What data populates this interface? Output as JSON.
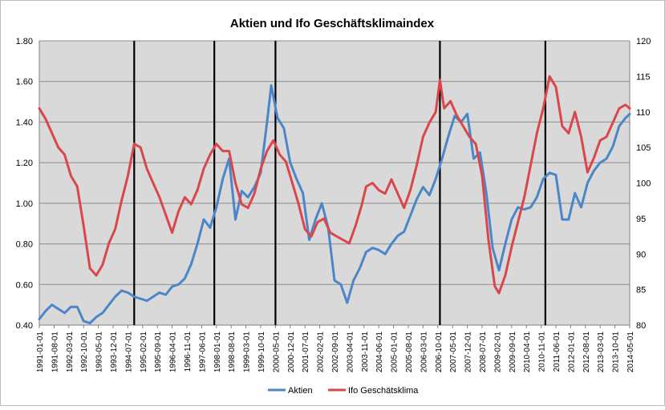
{
  "chart_data": {
    "type": "line",
    "title": "Aktien und Ifo Geschäftsklimaindex",
    "xlabel": "",
    "ylabel": "",
    "y_left": {
      "min": 0.4,
      "max": 1.8,
      "step": 0.2,
      "ticks": [
        "0.40",
        "0.60",
        "0.80",
        "1.00",
        "1.20",
        "1.40",
        "1.60",
        "1.80"
      ]
    },
    "y_right": {
      "min": 80,
      "max": 120,
      "step": 5,
      "ticks": [
        "80",
        "85",
        "90",
        "95",
        "100",
        "105",
        "110",
        "115",
        "120"
      ]
    },
    "x_tick_labels": [
      "1991-01-01",
      "1991-08-01",
      "1992-03-01",
      "1992-10-01",
      "1993-05-01",
      "1993-12-01",
      "1994-07-01",
      "1995-02-01",
      "1995-09-01",
      "1996-04-01",
      "1996-11-01",
      "1997-06-01",
      "1998-01-01",
      "1998-08-01",
      "1999-03-01",
      "1999-10-01",
      "2000-05-01",
      "2000-12-01",
      "2001-07-01",
      "2002-02-01",
      "2002-09-01",
      "2003-04-01",
      "2003-11-01",
      "2004-06-01",
      "2005-01-01",
      "2005-08-01",
      "2006-03-01",
      "2006-10-01",
      "2007-05-01",
      "2007-12-01",
      "2008-07-01",
      "2009-02-01",
      "2009-09-01",
      "2010-04-01",
      "2010-11-01",
      "2011-06-01",
      "2012-01-01",
      "2012-08-01",
      "2013-03-01",
      "2013-10-01",
      "2014-05-01"
    ],
    "recession_lines": [
      "1994-10-01",
      "1997-12-01",
      "2000-05-01",
      "2006-11-01",
      "2011-01-01"
    ],
    "grid": true,
    "legend_position": "bottom",
    "series": [
      {
        "name": "Aktien",
        "axis": "left",
        "color": "#4a86c8",
        "points": [
          [
            "1991-01-01",
            0.43
          ],
          [
            "1991-04-01",
            0.47
          ],
          [
            "1991-07-01",
            0.5
          ],
          [
            "1991-10-01",
            0.48
          ],
          [
            "1992-01-01",
            0.46
          ],
          [
            "1992-04-01",
            0.49
          ],
          [
            "1992-07-01",
            0.49
          ],
          [
            "1992-10-01",
            0.42
          ],
          [
            "1993-01-01",
            0.41
          ],
          [
            "1993-04-01",
            0.44
          ],
          [
            "1993-07-01",
            0.46
          ],
          [
            "1993-10-01",
            0.5
          ],
          [
            "1994-01-01",
            0.54
          ],
          [
            "1994-04-01",
            0.57
          ],
          [
            "1994-07-01",
            0.56
          ],
          [
            "1994-10-01",
            0.54
          ],
          [
            "1995-01-01",
            0.53
          ],
          [
            "1995-04-01",
            0.52
          ],
          [
            "1995-07-01",
            0.54
          ],
          [
            "1995-10-01",
            0.56
          ],
          [
            "1996-01-01",
            0.55
          ],
          [
            "1996-04-01",
            0.59
          ],
          [
            "1996-07-01",
            0.6
          ],
          [
            "1996-10-01",
            0.63
          ],
          [
            "1997-01-01",
            0.7
          ],
          [
            "1997-04-01",
            0.8
          ],
          [
            "1997-07-01",
            0.92
          ],
          [
            "1997-10-01",
            0.88
          ],
          [
            "1998-01-01",
            0.98
          ],
          [
            "1998-04-01",
            1.12
          ],
          [
            "1998-07-01",
            1.22
          ],
          [
            "1998-10-01",
            0.92
          ],
          [
            "1999-01-01",
            1.06
          ],
          [
            "1999-04-01",
            1.03
          ],
          [
            "1999-07-01",
            1.08
          ],
          [
            "1999-10-01",
            1.15
          ],
          [
            "2000-01-01",
            1.4
          ],
          [
            "2000-03-01",
            1.58
          ],
          [
            "2000-06-01",
            1.42
          ],
          [
            "2000-09-01",
            1.37
          ],
          [
            "2000-12-01",
            1.2
          ],
          [
            "2001-03-01",
            1.12
          ],
          [
            "2001-06-01",
            1.05
          ],
          [
            "2001-09-01",
            0.82
          ],
          [
            "2001-12-01",
            0.92
          ],
          [
            "2002-03-01",
            1.0
          ],
          [
            "2002-06-01",
            0.88
          ],
          [
            "2002-09-01",
            0.62
          ],
          [
            "2002-12-01",
            0.6
          ],
          [
            "2003-03-01",
            0.51
          ],
          [
            "2003-06-01",
            0.62
          ],
          [
            "2003-09-01",
            0.68
          ],
          [
            "2003-12-01",
            0.76
          ],
          [
            "2004-03-01",
            0.78
          ],
          [
            "2004-06-01",
            0.77
          ],
          [
            "2004-09-01",
            0.75
          ],
          [
            "2004-12-01",
            0.8
          ],
          [
            "2005-03-01",
            0.84
          ],
          [
            "2005-06-01",
            0.86
          ],
          [
            "2005-09-01",
            0.94
          ],
          [
            "2005-12-01",
            1.02
          ],
          [
            "2006-03-01",
            1.08
          ],
          [
            "2006-06-01",
            1.04
          ],
          [
            "2006-09-01",
            1.12
          ],
          [
            "2006-12-01",
            1.22
          ],
          [
            "2007-03-01",
            1.33
          ],
          [
            "2007-06-01",
            1.43
          ],
          [
            "2007-09-01",
            1.4
          ],
          [
            "2007-12-01",
            1.44
          ],
          [
            "2008-03-01",
            1.22
          ],
          [
            "2008-06-01",
            1.25
          ],
          [
            "2008-09-01",
            1.05
          ],
          [
            "2008-12-01",
            0.78
          ],
          [
            "2009-03-01",
            0.67
          ],
          [
            "2009-06-01",
            0.8
          ],
          [
            "2009-09-01",
            0.92
          ],
          [
            "2009-12-01",
            0.98
          ],
          [
            "2010-03-01",
            0.97
          ],
          [
            "2010-06-01",
            0.98
          ],
          [
            "2010-09-01",
            1.03
          ],
          [
            "2010-12-01",
            1.12
          ],
          [
            "2011-03-01",
            1.15
          ],
          [
            "2011-06-01",
            1.14
          ],
          [
            "2011-09-01",
            0.92
          ],
          [
            "2011-12-01",
            0.92
          ],
          [
            "2012-03-01",
            1.05
          ],
          [
            "2012-06-01",
            0.98
          ],
          [
            "2012-09-01",
            1.1
          ],
          [
            "2012-12-01",
            1.16
          ],
          [
            "2013-03-01",
            1.2
          ],
          [
            "2013-06-01",
            1.22
          ],
          [
            "2013-09-01",
            1.28
          ],
          [
            "2013-12-01",
            1.38
          ],
          [
            "2014-03-01",
            1.42
          ],
          [
            "2014-05-01",
            1.44
          ]
        ]
      },
      {
        "name": "Ifo Geschätsklima",
        "axis": "right",
        "color": "#d9474b",
        "points": [
          [
            "1991-01-01",
            110.5
          ],
          [
            "1991-04-01",
            109.0
          ],
          [
            "1991-07-01",
            107.0
          ],
          [
            "1991-10-01",
            105.0
          ],
          [
            "1992-01-01",
            104.0
          ],
          [
            "1992-04-01",
            101.0
          ],
          [
            "1992-07-01",
            99.5
          ],
          [
            "1992-10-01",
            94.0
          ],
          [
            "1993-01-01",
            88.0
          ],
          [
            "1993-04-01",
            87.0
          ],
          [
            "1993-07-01",
            88.5
          ],
          [
            "1993-10-01",
            91.5
          ],
          [
            "1994-01-01",
            93.5
          ],
          [
            "1994-04-01",
            97.5
          ],
          [
            "1994-07-01",
            101.0
          ],
          [
            "1994-10-01",
            105.5
          ],
          [
            "1995-01-01",
            105.0
          ],
          [
            "1995-04-01",
            102.0
          ],
          [
            "1995-07-01",
            100.0
          ],
          [
            "1995-10-01",
            98.0
          ],
          [
            "1996-01-01",
            95.5
          ],
          [
            "1996-04-01",
            93.0
          ],
          [
            "1996-07-01",
            96.0
          ],
          [
            "1996-10-01",
            98.0
          ],
          [
            "1997-01-01",
            97.0
          ],
          [
            "1997-04-01",
            99.0
          ],
          [
            "1997-07-01",
            102.0
          ],
          [
            "1997-10-01",
            104.0
          ],
          [
            "1998-01-01",
            105.5
          ],
          [
            "1998-04-01",
            104.5
          ],
          [
            "1998-07-01",
            104.5
          ],
          [
            "1998-10-01",
            100.0
          ],
          [
            "1999-01-01",
            97.0
          ],
          [
            "1999-04-01",
            96.5
          ],
          [
            "1999-07-01",
            98.5
          ],
          [
            "1999-10-01",
            102.0
          ],
          [
            "2000-01-01",
            104.5
          ],
          [
            "2000-04-01",
            106.0
          ],
          [
            "2000-07-01",
            104.0
          ],
          [
            "2000-10-01",
            103.0
          ],
          [
            "2001-01-01",
            100.0
          ],
          [
            "2001-04-01",
            97.0
          ],
          [
            "2001-07-01",
            93.5
          ],
          [
            "2001-10-01",
            92.5
          ],
          [
            "2002-01-01",
            94.5
          ],
          [
            "2002-04-01",
            95.0
          ],
          [
            "2002-07-01",
            93.0
          ],
          [
            "2002-10-01",
            92.5
          ],
          [
            "2003-01-01",
            92.0
          ],
          [
            "2003-04-01",
            91.5
          ],
          [
            "2003-07-01",
            94.0
          ],
          [
            "2003-10-01",
            97.0
          ],
          [
            "2003-12-01",
            99.5
          ],
          [
            "2004-03-01",
            100.0
          ],
          [
            "2004-06-01",
            99.0
          ],
          [
            "2004-09-01",
            98.5
          ],
          [
            "2004-12-01",
            100.5
          ],
          [
            "2005-03-01",
            98.5
          ],
          [
            "2005-06-01",
            96.5
          ],
          [
            "2005-09-01",
            99.0
          ],
          [
            "2005-12-01",
            102.5
          ],
          [
            "2006-03-01",
            106.5
          ],
          [
            "2006-06-01",
            108.5
          ],
          [
            "2006-09-01",
            110.0
          ],
          [
            "2006-11-01",
            114.5
          ],
          [
            "2007-01-01",
            110.5
          ],
          [
            "2007-04-01",
            111.5
          ],
          [
            "2007-07-01",
            109.5
          ],
          [
            "2007-10-01",
            108.0
          ],
          [
            "2008-01-01",
            106.5
          ],
          [
            "2008-04-01",
            105.5
          ],
          [
            "2008-07-01",
            101.0
          ],
          [
            "2008-10-01",
            92.0
          ],
          [
            "2009-01-01",
            85.5
          ],
          [
            "2009-03-01",
            84.5
          ],
          [
            "2009-06-01",
            87.0
          ],
          [
            "2009-09-01",
            91.0
          ],
          [
            "2009-12-01",
            94.5
          ],
          [
            "2010-03-01",
            98.0
          ],
          [
            "2010-06-01",
            102.5
          ],
          [
            "2010-09-01",
            107.0
          ],
          [
            "2010-12-01",
            110.5
          ],
          [
            "2011-03-01",
            115.0
          ],
          [
            "2011-06-01",
            113.5
          ],
          [
            "2011-09-01",
            108.0
          ],
          [
            "2011-12-01",
            107.0
          ],
          [
            "2012-03-01",
            110.0
          ],
          [
            "2012-06-01",
            106.5
          ],
          [
            "2012-09-01",
            101.5
          ],
          [
            "2012-12-01",
            103.5
          ],
          [
            "2013-03-01",
            106.0
          ],
          [
            "2013-06-01",
            106.5
          ],
          [
            "2013-09-01",
            108.5
          ],
          [
            "2013-12-01",
            110.5
          ],
          [
            "2014-03-01",
            111.0
          ],
          [
            "2014-05-01",
            110.5
          ]
        ]
      }
    ]
  }
}
